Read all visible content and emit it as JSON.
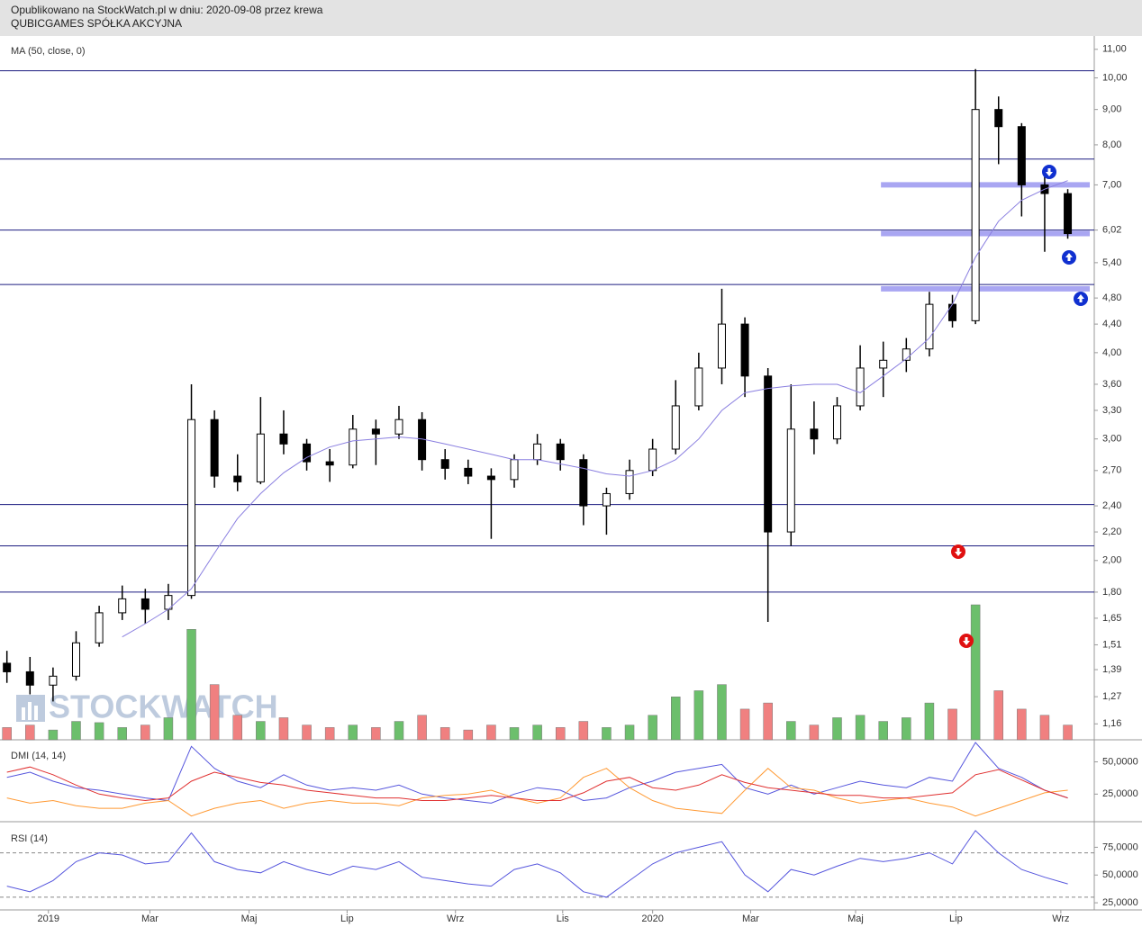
{
  "header": {
    "published": "Opublikowano na StockWatch.pl w dniu: 2020-09-08 przez krewa",
    "company": "QUBICGAMES SPÓŁKA AKCYJNA"
  },
  "chart_data": {
    "type": "candlestick",
    "watermark": "STOCKWATCH",
    "log": true,
    "x": [
      0,
      2,
      4,
      6,
      8,
      10,
      12,
      14,
      16,
      18,
      20,
      22,
      24,
      26,
      28,
      30,
      32,
      34,
      36,
      38,
      40,
      42,
      44,
      46,
      48,
      50,
      52,
      54,
      56,
      58,
      60,
      62,
      64,
      66,
      68,
      70,
      72,
      74,
      76,
      78,
      80,
      82,
      84,
      86,
      88,
      90,
      92
    ],
    "open": [
      1.42,
      1.38,
      1.32,
      1.36,
      1.52,
      1.68,
      1.76,
      1.7,
      1.78,
      3.2,
      2.65,
      2.6,
      3.05,
      2.95,
      2.78,
      2.75,
      3.1,
      3.05,
      3.2,
      2.8,
      2.72,
      2.65,
      2.62,
      2.8,
      2.95,
      2.8,
      2.4,
      2.5,
      2.7,
      2.9,
      3.35,
      3.8,
      4.4,
      3.7,
      2.2,
      3.1,
      3.0,
      3.35,
      3.8,
      3.9,
      4.05,
      4.7,
      4.45,
      9.0,
      8.5,
      7.0,
      6.8
    ],
    "high": [
      1.48,
      1.45,
      1.4,
      1.58,
      1.72,
      1.84,
      1.82,
      1.85,
      3.6,
      3.3,
      2.85,
      3.45,
      3.3,
      3.0,
      2.9,
      3.25,
      3.2,
      3.35,
      3.28,
      2.9,
      2.8,
      2.72,
      2.85,
      3.05,
      3.0,
      2.85,
      2.55,
      2.8,
      3.0,
      3.65,
      4.0,
      4.95,
      4.5,
      3.8,
      3.6,
      3.4,
      3.45,
      4.1,
      4.15,
      4.2,
      4.9,
      4.85,
      10.3,
      9.4,
      8.6,
      7.4,
      6.9
    ],
    "low": [
      1.33,
      1.28,
      1.25,
      1.34,
      1.5,
      1.64,
      1.62,
      1.64,
      1.76,
      2.55,
      2.52,
      2.58,
      2.85,
      2.7,
      2.6,
      2.72,
      2.75,
      3.0,
      2.7,
      2.62,
      2.58,
      2.15,
      2.55,
      2.75,
      2.7,
      2.25,
      2.18,
      2.45,
      2.65,
      2.85,
      3.3,
      3.6,
      3.45,
      1.63,
      2.1,
      2.85,
      2.95,
      3.3,
      3.45,
      3.75,
      3.95,
      4.35,
      4.4,
      7.5,
      6.3,
      5.6,
      5.85
    ],
    "close": [
      1.38,
      1.32,
      1.36,
      1.52,
      1.68,
      1.76,
      1.7,
      1.78,
      3.2,
      2.65,
      2.6,
      3.05,
      2.95,
      2.78,
      2.75,
      3.1,
      3.05,
      3.2,
      2.8,
      2.72,
      2.65,
      2.62,
      2.8,
      2.95,
      2.8,
      2.4,
      2.5,
      2.7,
      2.9,
      3.35,
      3.8,
      4.4,
      3.7,
      2.2,
      3.1,
      3.0,
      3.35,
      3.8,
      3.9,
      4.05,
      4.7,
      4.45,
      9.0,
      8.5,
      7.0,
      6.8,
      5.95
    ],
    "up_color": "#ffffff",
    "down_color": "#000000",
    "wick_color": "#000000",
    "ma": {
      "name": "MA (50, close, 0)",
      "color": "#8a7fe0",
      "values": [
        null,
        null,
        null,
        null,
        null,
        1.55,
        1.62,
        1.7,
        1.82,
        2.05,
        2.3,
        2.5,
        2.68,
        2.82,
        2.92,
        2.98,
        3.0,
        3.02,
        3.0,
        2.95,
        2.9,
        2.85,
        2.8,
        2.8,
        2.76,
        2.72,
        2.67,
        2.65,
        2.7,
        2.8,
        3.0,
        3.3,
        3.5,
        3.55,
        3.58,
        3.6,
        3.6,
        3.5,
        3.7,
        3.92,
        4.2,
        4.7,
        5.5,
        6.2,
        6.65,
        6.9,
        7.1
      ]
    },
    "volume": {
      "values": [
        10,
        12,
        8,
        15,
        14,
        10,
        12,
        18,
        90,
        45,
        20,
        15,
        18,
        12,
        10,
        12,
        10,
        15,
        20,
        10,
        8,
        12,
        10,
        12,
        10,
        15,
        10,
        12,
        20,
        35,
        40,
        45,
        25,
        30,
        15,
        12,
        18,
        20,
        15,
        18,
        30,
        25,
        110,
        40,
        25,
        20,
        12
      ],
      "up_color": "#6cbf6c",
      "down_color": "#f08080"
    },
    "hlines": [
      10.24,
      7.63,
      6.02,
      5.02,
      2.41,
      2.1,
      1.8
    ],
    "hline_color": "#1c1c80",
    "zones": [
      7.0,
      5.95,
      4.95
    ],
    "zone_start": 75.8,
    "zone_color": "#a9a6f2",
    "xlim": [
      -0.6,
      94.3
    ],
    "xticks": [
      {
        "value": 3.6,
        "label": "2019"
      },
      {
        "value": 12.4,
        "label": "Mar"
      },
      {
        "value": 21,
        "label": "Maj"
      },
      {
        "value": 29.5,
        "label": "Lip"
      },
      {
        "value": 38.9,
        "label": "Wrz"
      },
      {
        "value": 48.2,
        "label": "Lis"
      },
      {
        "value": 56,
        "label": "2020"
      },
      {
        "value": 64.5,
        "label": "Mar"
      },
      {
        "value": 73.6,
        "label": "Maj"
      },
      {
        "value": 82.3,
        "label": "Lip"
      },
      {
        "value": 91.4,
        "label": "Wrz"
      }
    ],
    "ylim": [
      1.1,
      11.5
    ],
    "yticks": [
      {
        "value": 11,
        "label": "11,00"
      },
      {
        "value": 10,
        "label": "10,00"
      },
      {
        "value": 9,
        "label": "9,00"
      },
      {
        "value": 8,
        "label": "8,00"
      },
      {
        "value": 7,
        "label": "7,00"
      },
      {
        "value": 6.02,
        "label": "6,02"
      },
      {
        "value": 5.4,
        "label": "5,40"
      },
      {
        "value": 4.8,
        "label": "4,80"
      },
      {
        "value": 4.4,
        "label": "4,40"
      },
      {
        "value": 4,
        "label": "4,00"
      },
      {
        "value": 3.6,
        "label": "3,60"
      },
      {
        "value": 3.3,
        "label": "3,30"
      },
      {
        "value": 3,
        "label": "3,00"
      },
      {
        "value": 2.7,
        "label": "2,70"
      },
      {
        "value": 2.4,
        "label": "2,40"
      },
      {
        "value": 2.2,
        "label": "2,20"
      },
      {
        "value": 2,
        "label": "2,00"
      },
      {
        "value": 1.8,
        "label": "1,80"
      },
      {
        "value": 1.65,
        "label": "1,65"
      },
      {
        "value": 1.51,
        "label": "1,51"
      },
      {
        "value": 1.39,
        "label": "1,39"
      },
      {
        "value": 1.27,
        "label": "1,27"
      },
      {
        "value": 1.16,
        "label": "1,16"
      }
    ],
    "dmi": {
      "title": "DMI (14, 14)",
      "ylim": [
        5,
        65
      ],
      "yticks": [
        {
          "value": 50,
          "label": "50,0000"
        },
        {
          "value": 25,
          "label": "25,0000"
        }
      ],
      "series": [
        {
          "color": "#5555dd",
          "values": [
            38,
            42,
            35,
            30,
            28,
            25,
            22,
            20,
            62,
            45,
            35,
            30,
            40,
            32,
            28,
            30,
            28,
            32,
            25,
            22,
            20,
            18,
            25,
            30,
            28,
            20,
            22,
            30,
            35,
            42,
            45,
            48,
            30,
            25,
            32,
            25,
            30,
            35,
            32,
            30,
            38,
            35,
            65,
            45,
            38,
            28,
            22
          ]
        },
        {
          "color": "#ff9933",
          "values": [
            22,
            18,
            20,
            16,
            14,
            14,
            18,
            20,
            8,
            14,
            18,
            20,
            14,
            18,
            20,
            18,
            18,
            16,
            22,
            24,
            25,
            28,
            22,
            18,
            22,
            38,
            45,
            30,
            20,
            14,
            12,
            10,
            28,
            45,
            30,
            28,
            22,
            18,
            20,
            22,
            18,
            15,
            8,
            14,
            20,
            26,
            28
          ]
        },
        {
          "color": "#e03030",
          "values": [
            42,
            46,
            40,
            32,
            25,
            22,
            20,
            22,
            35,
            42,
            38,
            34,
            32,
            28,
            26,
            24,
            22,
            22,
            20,
            20,
            22,
            24,
            22,
            20,
            20,
            26,
            35,
            38,
            30,
            28,
            32,
            40,
            34,
            30,
            28,
            26,
            24,
            24,
            22,
            22,
            24,
            26,
            40,
            44,
            36,
            28,
            22
          ]
        }
      ]
    },
    "rsi": {
      "title": "RSI (14)",
      "ylim": [
        19.4,
        96.4
      ],
      "levels": [
        70,
        30
      ],
      "color": "#5555dd",
      "yticks": [
        {
          "value": 75,
          "label": "75,0000"
        },
        {
          "value": 50,
          "label": "50,0000"
        },
        {
          "value": 25,
          "label": "25,0000"
        }
      ],
      "values": [
        40,
        35,
        45,
        62,
        70,
        68,
        60,
        62,
        88,
        62,
        55,
        52,
        62,
        55,
        50,
        58,
        55,
        62,
        48,
        45,
        42,
        40,
        55,
        60,
        52,
        35,
        30,
        45,
        60,
        70,
        75,
        80,
        50,
        35,
        55,
        50,
        58,
        65,
        62,
        65,
        70,
        60,
        90,
        70,
        55,
        48,
        42
      ]
    }
  }
}
